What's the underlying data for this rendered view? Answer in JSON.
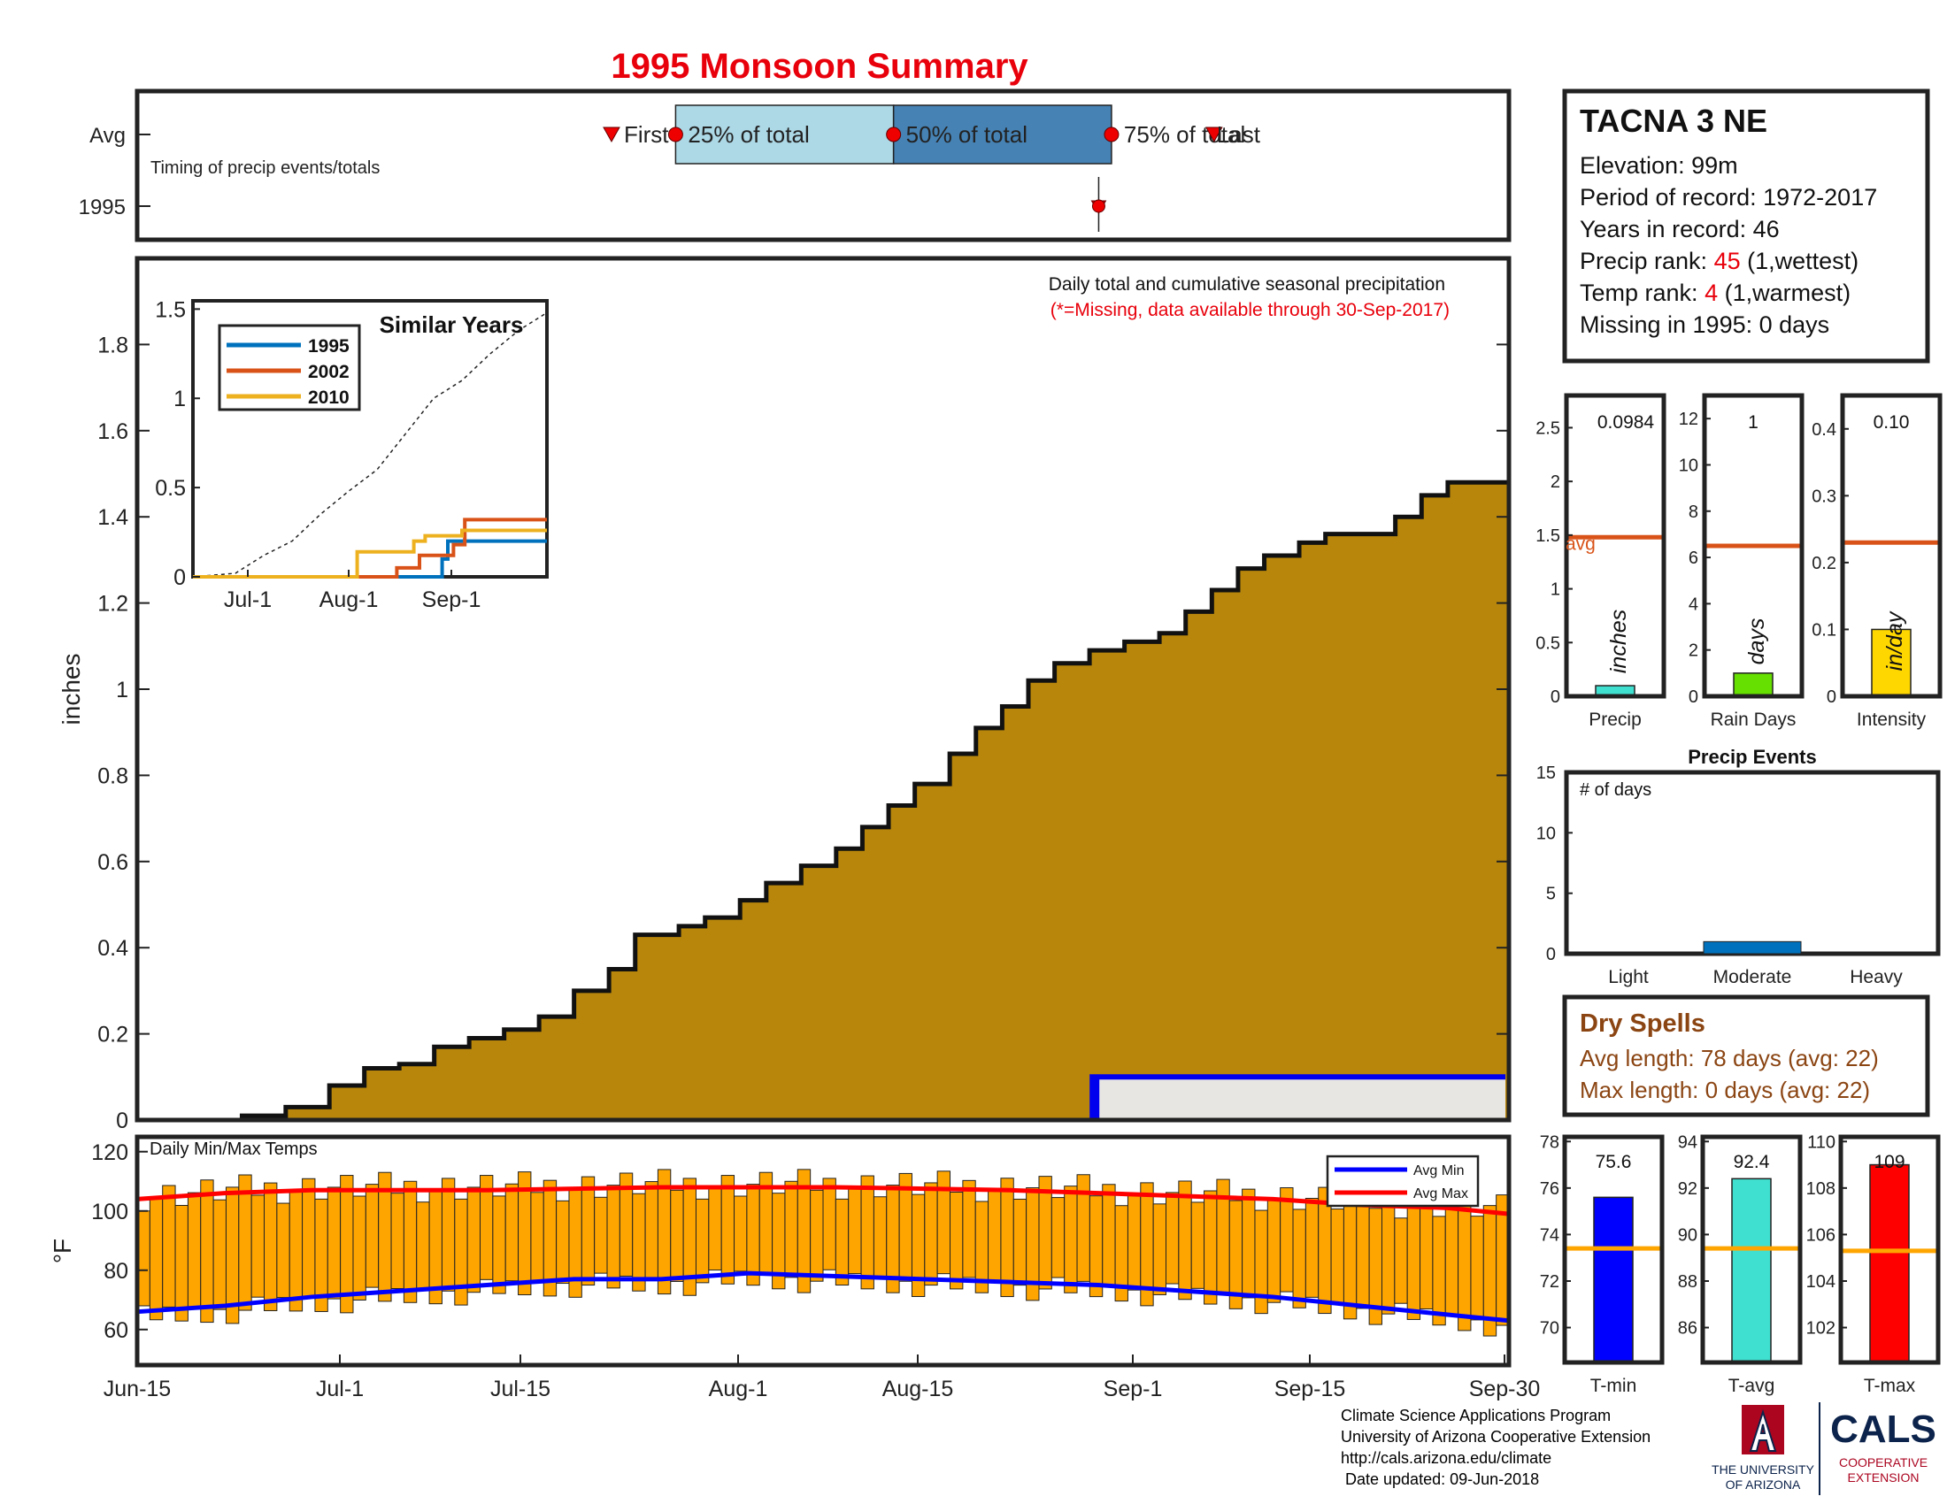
{
  "title": "1995 Monsoon Summary",
  "timing": {
    "row_labels": [
      "Avg",
      "1995"
    ],
    "caption": "Timing of precip events/totals",
    "first_label": "First",
    "p25_label": "25% of total",
    "p50_label": "50% of total",
    "p75_label": "75% of total",
    "last_label": "Last",
    "avg_first": "2017-07-22",
    "avg_p25": "2017-07-27",
    "avg_p50": "2017-08-13",
    "avg_p75": "2017-08-30",
    "avg_last": "2017-09-07",
    "year_marks": [
      "2017-08-29",
      "2017-08-29",
      "2017-08-29",
      "2017-08-29"
    ]
  },
  "station": {
    "name": "TACNA 3 NE",
    "elevation_text": "Elevation: 99m",
    "period_text": "Period of record: 1972-2017",
    "years_text": "Years in record: 46",
    "precip_rank_prefix": "Precip rank: ",
    "precip_rank_value": "45",
    "precip_rank_suffix": " (1,wettest)",
    "temp_rank_prefix": "Temp rank: ",
    "temp_rank_value": "4",
    "temp_rank_suffix": " (1,warmest)",
    "missing_text": "Missing in 1995: 0 days"
  },
  "precip_main": {
    "note": "Daily total and cumulative seasonal precipitation",
    "missing_note": "(*=Missing, data available through 30-Sep-2017)",
    "ylabel": "inches",
    "ylim": [
      0,
      2
    ],
    "yticks": [
      "0",
      "0.2",
      "0.4",
      "0.6",
      "0.8",
      "1",
      "1.2",
      "1.4",
      "1.6",
      "1.8"
    ],
    "xticks": [
      "Jun-15",
      "Jul-1",
      "Jul-15",
      "Aug-1",
      "Aug-15",
      "Sep-1",
      "Sep-15",
      "Sep-30"
    ],
    "cumulative_avg": [
      [
        0,
        0
      ],
      [
        12,
        0.01
      ],
      [
        17,
        0.03
      ],
      [
        22,
        0.08
      ],
      [
        26,
        0.12
      ],
      [
        30,
        0.13
      ],
      [
        34,
        0.17
      ],
      [
        38,
        0.19
      ],
      [
        42,
        0.21
      ],
      [
        46,
        0.24
      ],
      [
        50,
        0.3
      ],
      [
        54,
        0.35
      ],
      [
        57,
        0.43
      ],
      [
        62,
        0.45
      ],
      [
        65,
        0.47
      ],
      [
        69,
        0.51
      ],
      [
        72,
        0.55
      ],
      [
        76,
        0.59
      ],
      [
        80,
        0.63
      ],
      [
        83,
        0.68
      ],
      [
        86,
        0.73
      ],
      [
        89,
        0.78
      ],
      [
        93,
        0.85
      ],
      [
        96,
        0.91
      ],
      [
        99,
        0.96
      ],
      [
        102,
        1.02
      ],
      [
        105,
        1.06
      ],
      [
        109,
        1.09
      ],
      [
        113,
        1.11
      ],
      [
        117,
        1.13
      ],
      [
        120,
        1.18
      ],
      [
        123,
        1.23
      ],
      [
        126,
        1.28
      ],
      [
        129,
        1.31
      ],
      [
        133,
        1.34
      ],
      [
        136,
        1.36
      ],
      [
        140,
        1.36
      ],
      [
        144,
        1.4
      ],
      [
        147,
        1.45
      ],
      [
        150,
        1.48
      ],
      [
        154,
        1.48
      ],
      [
        157,
        1.48
      ]
    ],
    "year_total_start_day": 78,
    "year_total_value": 0.1
  },
  "similar_years": {
    "title": "Similar Years",
    "ylim": [
      0,
      1.5
    ],
    "yticks": [
      "0",
      "0.5",
      "1",
      "1.5"
    ],
    "xticks": [
      "Jul-1",
      "Aug-1",
      "Sep-1"
    ],
    "avg_line": [
      [
        0,
        0
      ],
      [
        15,
        0.02
      ],
      [
        25,
        0.12
      ],
      [
        35,
        0.2
      ],
      [
        45,
        0.35
      ],
      [
        55,
        0.48
      ],
      [
        65,
        0.6
      ],
      [
        75,
        0.8
      ],
      [
        85,
        1.0
      ],
      [
        95,
        1.1
      ],
      [
        105,
        1.25
      ],
      [
        115,
        1.38
      ],
      [
        125,
        1.48
      ]
    ],
    "series": [
      {
        "name": "1995",
        "color": "#0072BD",
        "points": [
          [
            0,
            0
          ],
          [
            88,
            0
          ],
          [
            88,
            0.1
          ],
          [
            90,
            0.1
          ],
          [
            90,
            0.2
          ],
          [
            125,
            0.2
          ]
        ]
      },
      {
        "name": "2002",
        "color": "#D95319",
        "points": [
          [
            0,
            0
          ],
          [
            72,
            0
          ],
          [
            72,
            0.05
          ],
          [
            80,
            0.05
          ],
          [
            80,
            0.12
          ],
          [
            92,
            0.12
          ],
          [
            92,
            0.18
          ],
          [
            96,
            0.18
          ],
          [
            96,
            0.32
          ],
          [
            125,
            0.32
          ]
        ]
      },
      {
        "name": "2010",
        "color": "#EDB120",
        "points": [
          [
            0,
            0
          ],
          [
            58,
            0
          ],
          [
            58,
            0.14
          ],
          [
            78,
            0.14
          ],
          [
            78,
            0.2
          ],
          [
            82,
            0.2
          ],
          [
            82,
            0.23
          ],
          [
            95,
            0.23
          ],
          [
            95,
            0.26
          ],
          [
            125,
            0.26
          ]
        ]
      }
    ]
  },
  "mini_bars": [
    {
      "label": "Precip",
      "unit": "inches",
      "value_text": "0.0984",
      "value": 0.0984,
      "avg": 1.48,
      "avg_label": "avg",
      "ylim": [
        0,
        2.8
      ],
      "yticks": [
        "0",
        "0.5",
        "1",
        "1.5",
        "2",
        "2.5"
      ],
      "color": "#40E0D0"
    },
    {
      "label": "Rain Days",
      "unit": "days",
      "value_text": "1",
      "value": 1,
      "avg": 6.5,
      "ylim": [
        0,
        13
      ],
      "yticks": [
        "0",
        "2",
        "4",
        "6",
        "8",
        "10",
        "12"
      ],
      "color": "#66E000"
    },
    {
      "label": "Intensity",
      "unit": "in/day",
      "value_text": "0.10",
      "value": 0.1,
      "avg": 0.23,
      "ylim": [
        0,
        0.45
      ],
      "yticks": [
        "0",
        "0.1",
        "0.2",
        "0.3",
        "0.4"
      ],
      "color": "#FFD700"
    }
  ],
  "precip_events": {
    "title": "Precip Events",
    "ylabel": "# of days",
    "ylim": [
      0,
      15
    ],
    "yticks": [
      "0",
      "5",
      "10",
      "15"
    ],
    "categories": [
      "Light",
      "Moderate",
      "Heavy"
    ],
    "values": [
      0,
      1,
      0
    ],
    "color": "#0072BD"
  },
  "dry_spells": {
    "title": "Dry Spells",
    "avg_text": "Avg length: 78 days (avg: 22)",
    "max_text": "Max length: 0 days (avg: 22)",
    "color": "#8B4513"
  },
  "temps": {
    "label": "Daily Min/Max Temps",
    "ylabel": "°F",
    "ylim": [
      48,
      125
    ],
    "yticks": [
      "60",
      "80",
      "100",
      "120"
    ],
    "legend": [
      "Avg Min",
      "Avg Max"
    ],
    "avg_max": [
      [
        0,
        104
      ],
      [
        10,
        106
      ],
      [
        20,
        107
      ],
      [
        40,
        107
      ],
      [
        60,
        108
      ],
      [
        80,
        108
      ],
      [
        100,
        107
      ],
      [
        120,
        105
      ],
      [
        130,
        104
      ],
      [
        140,
        102
      ],
      [
        150,
        101
      ],
      [
        157,
        99
      ]
    ],
    "avg_min": [
      [
        0,
        66
      ],
      [
        10,
        68
      ],
      [
        20,
        71
      ],
      [
        30,
        73
      ],
      [
        40,
        75
      ],
      [
        50,
        77
      ],
      [
        60,
        77
      ],
      [
        70,
        79
      ],
      [
        80,
        78
      ],
      [
        90,
        77
      ],
      [
        100,
        76
      ],
      [
        110,
        75
      ],
      [
        120,
        73
      ],
      [
        130,
        71
      ],
      [
        140,
        68
      ],
      [
        150,
        65
      ],
      [
        157,
        63
      ]
    ]
  },
  "temp_bars": [
    {
      "label": "T-min",
      "value_text": "75.6",
      "value": 75.6,
      "avg": 73.4,
      "ylim": [
        68.5,
        78.2
      ],
      "yticks": [
        "70",
        "72",
        "74",
        "76",
        "78"
      ],
      "color": "#0000FF"
    },
    {
      "label": "T-avg",
      "value_text": "92.4",
      "value": 92.4,
      "avg": 89.4,
      "ylim": [
        84.5,
        94.2
      ],
      "yticks": [
        "86",
        "88",
        "90",
        "92",
        "94"
      ],
      "color": "#40E0D0"
    },
    {
      "label": "T-max",
      "value_text": "109",
      "value": 109,
      "avg": 105.3,
      "ylim": [
        100.5,
        110.2
      ],
      "yticks": [
        "102",
        "104",
        "106",
        "108",
        "110"
      ],
      "color": "#FF0000"
    }
  ],
  "footer": {
    "line1": "Climate Science Applications Program",
    "line2": "University of Arizona Cooperative Extension",
    "line3": "http://cals.arizona.edu/climate",
    "line4": " Date updated: 09-Jun-2018",
    "ua_line1": "THE UNIVERSITY",
    "ua_line2": "OF ARIZONA",
    "cals": "CALS",
    "cals_line1": "COOPERATIVE",
    "cals_line2": "EXTENSION"
  }
}
